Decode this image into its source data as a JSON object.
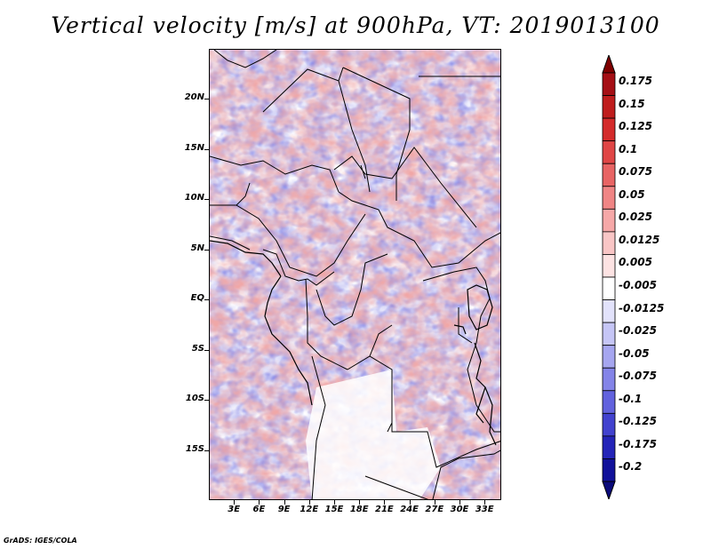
{
  "title": "Vertical velocity [m/s] at 900hPa, VT: 2019013100",
  "credit": "GrADS: IGES/COLA",
  "map": {
    "lon_range": [
      0,
      35
    ],
    "lat_range": [
      -20,
      25
    ],
    "lat_ticks": [
      {
        "value": 20,
        "label": "20N"
      },
      {
        "value": 15,
        "label": "15N"
      },
      {
        "value": 10,
        "label": "10N"
      },
      {
        "value": 5,
        "label": "5N"
      },
      {
        "value": 0,
        "label": "EQ"
      },
      {
        "value": -5,
        "label": "5S"
      },
      {
        "value": -10,
        "label": "10S"
      },
      {
        "value": -15,
        "label": "15S"
      }
    ],
    "lon_ticks": [
      {
        "value": 3,
        "label": "3E"
      },
      {
        "value": 6,
        "label": "6E"
      },
      {
        "value": 9,
        "label": "9E"
      },
      {
        "value": 12,
        "label": "12E"
      },
      {
        "value": 15,
        "label": "15E"
      },
      {
        "value": 18,
        "label": "18E"
      },
      {
        "value": 21,
        "label": "21E"
      },
      {
        "value": 24,
        "label": "24E"
      },
      {
        "value": 27,
        "label": "27E"
      },
      {
        "value": 30,
        "label": "30E"
      },
      {
        "value": 33,
        "label": "33E"
      }
    ]
  },
  "colorbar": {
    "levels": [
      {
        "label": "0.175",
        "color": "#a50f15"
      },
      {
        "label": "0.15",
        "color": "#bf1d1d"
      },
      {
        "label": "0.125",
        "color": "#d42b2b"
      },
      {
        "label": "0.1",
        "color": "#e04646"
      },
      {
        "label": "0.075",
        "color": "#e86464"
      },
      {
        "label": "0.05",
        "color": "#f08585"
      },
      {
        "label": "0.025",
        "color": "#f6a8a8"
      },
      {
        "label": "0.0125",
        "color": "#f9c6c6"
      },
      {
        "label": "0.005",
        "color": "#fde3e3"
      },
      {
        "label": "-0.005",
        "color": "#ffffff"
      },
      {
        "label": "-0.0125",
        "color": "#e2e2fb"
      },
      {
        "label": "-0.025",
        "color": "#c6c6f6"
      },
      {
        "label": "-0.05",
        "color": "#a6a6f0"
      },
      {
        "label": "-0.075",
        "color": "#8484e8"
      },
      {
        "label": "-0.1",
        "color": "#6262de"
      },
      {
        "label": "-0.125",
        "color": "#4242cf"
      },
      {
        "label": "-0.175",
        "color": "#2424b8"
      },
      {
        "label": "-0.2",
        "color": "#11119a"
      }
    ],
    "top_arrow_color": "#7f0000",
    "bottom_arrow_color": "#0a0a7a"
  }
}
